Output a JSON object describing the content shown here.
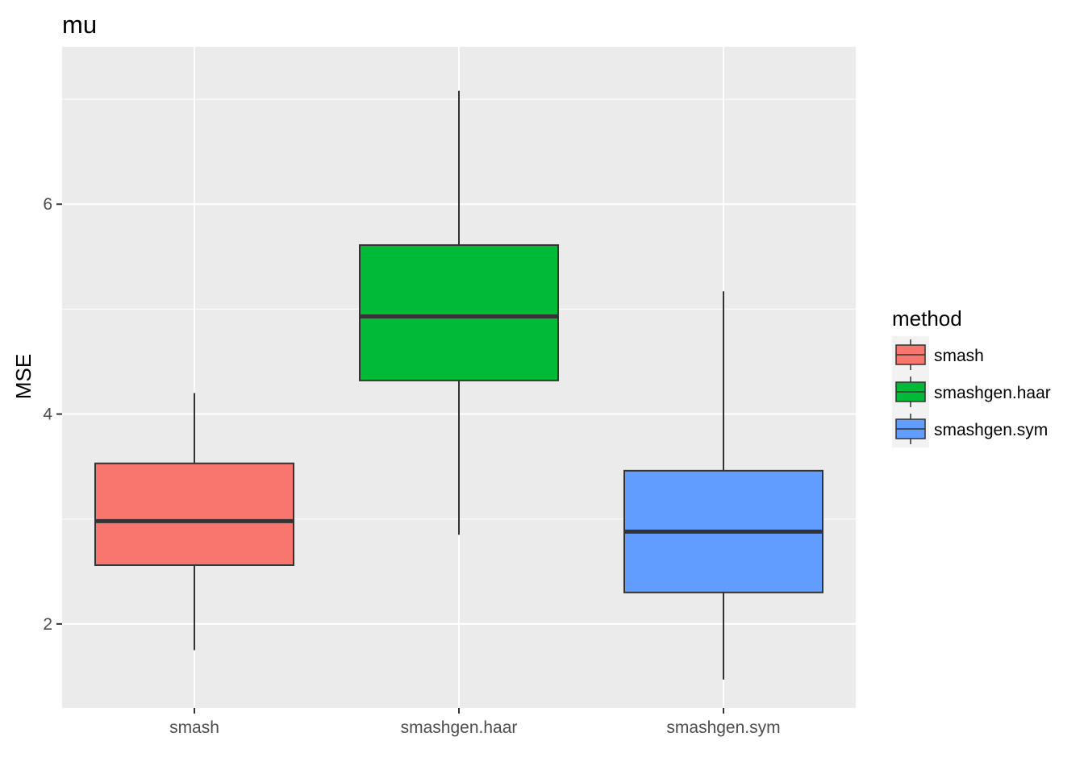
{
  "chart_data": {
    "type": "boxplot",
    "title": "mu",
    "xlabel": "",
    "ylabel": "MSE",
    "ylim": [
      1.2,
      7.5
    ],
    "yticks": [
      2,
      4,
      6
    ],
    "grid": true,
    "legend_title": "method",
    "legend_position": "right",
    "categories": [
      "smash",
      "smashgen.haar",
      "smashgen.sym"
    ],
    "series": [
      {
        "name": "smash",
        "color": "#F8766D",
        "min": 1.75,
        "q1": 2.56,
        "median": 2.98,
        "q3": 3.53,
        "max": 4.2
      },
      {
        "name": "smashgen.haar",
        "color": "#00BA38",
        "min": 2.85,
        "q1": 4.32,
        "median": 4.93,
        "q3": 5.61,
        "max": 7.08
      },
      {
        "name": "smashgen.sym",
        "color": "#619CFF",
        "min": 1.47,
        "q1": 2.3,
        "median": 2.88,
        "q3": 3.46,
        "max": 5.17
      }
    ]
  }
}
